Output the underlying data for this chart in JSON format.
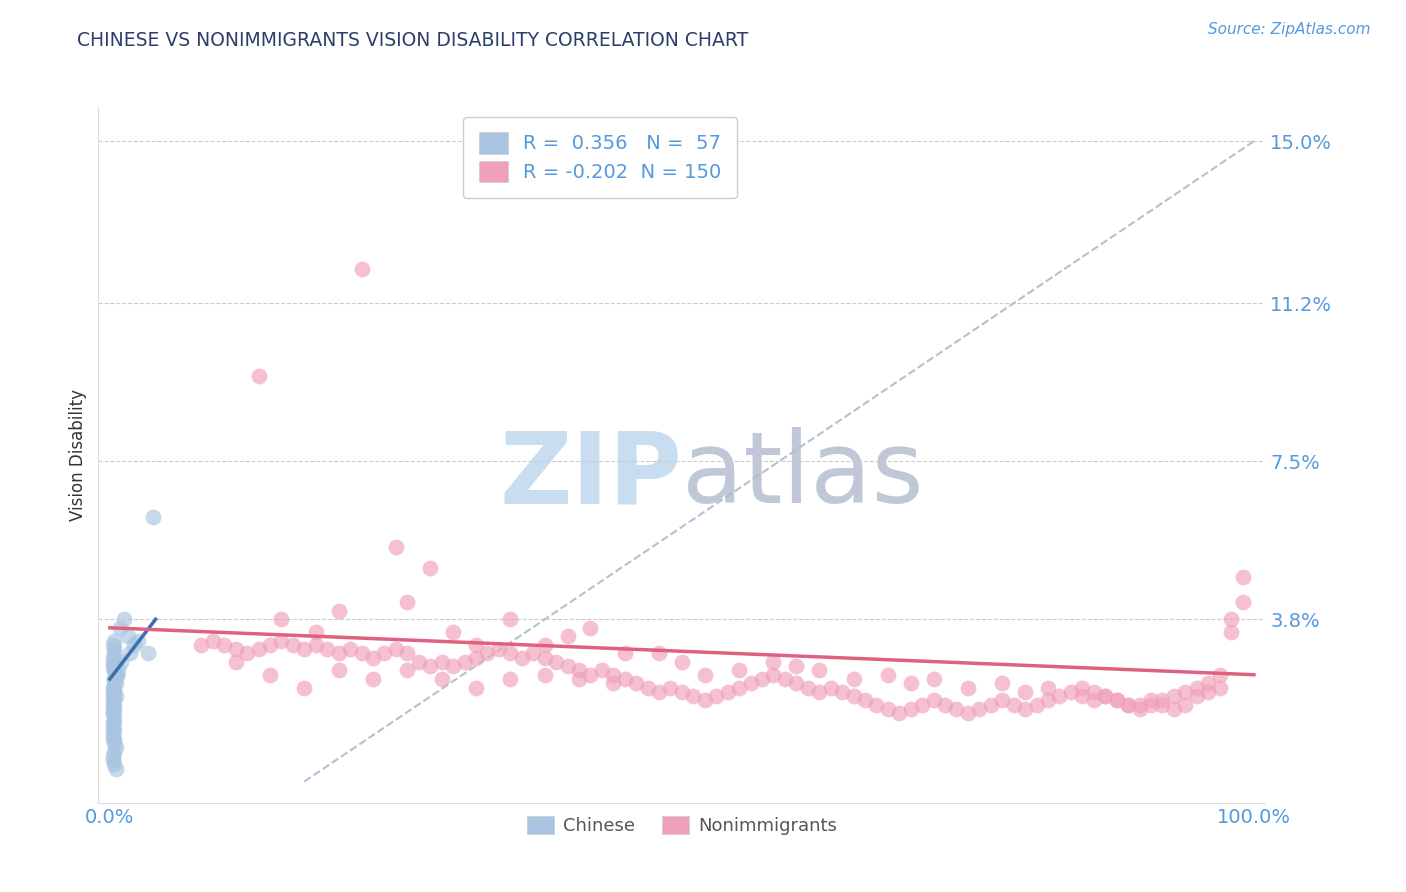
{
  "title": "CHINESE VS NONIMMIGRANTS VISION DISABILITY CORRELATION CHART",
  "source": "Source: ZipAtlas.com",
  "ylabel": "Vision Disability",
  "watermark": "ZIPatlas",
  "xlim": [
    -0.01,
    1.01
  ],
  "ylim": [
    -0.005,
    0.158
  ],
  "yticks": [
    0.038,
    0.075,
    0.112,
    0.15
  ],
  "ytick_labels": [
    "3.8%",
    "7.5%",
    "11.2%",
    "15.0%"
  ],
  "xtick_labels": [
    "0.0%",
    "100.0%"
  ],
  "xticks": [
    0.0,
    1.0
  ],
  "r_chinese": 0.356,
  "n_chinese": 57,
  "r_nonimm": -0.202,
  "n_nonimm": 150,
  "legend_labels": [
    "Chinese",
    "Nonimmigrants"
  ],
  "blue_color": "#a8c4e0",
  "pink_color": "#f0a0b8",
  "blue_line_color": "#3a6fb0",
  "pink_line_color": "#e06080",
  "title_color": "#2c3e6b",
  "axis_label_color": "#333333",
  "tick_label_color": "#5599dd",
  "source_color": "#5599dd",
  "watermark_blue": "#c8ddf0",
  "watermark_gray": "#c0c8d8",
  "grid_color": "#cccccc",
  "background_color": "#ffffff",
  "chinese_x": [
    0.005,
    0.004,
    0.004,
    0.003,
    0.003,
    0.003,
    0.004,
    0.005,
    0.006,
    0.004,
    0.003,
    0.003,
    0.004,
    0.004,
    0.003,
    0.003,
    0.004,
    0.004,
    0.004,
    0.005,
    0.004,
    0.003,
    0.003,
    0.004,
    0.005,
    0.004,
    0.003,
    0.003,
    0.004,
    0.003,
    0.004,
    0.003,
    0.003,
    0.004,
    0.003,
    0.004,
    0.003,
    0.003,
    0.004,
    0.004,
    0.003,
    0.004,
    0.006,
    0.005,
    0.004,
    0.004,
    0.003,
    0.016,
    0.009,
    0.012,
    0.018,
    0.021,
    0.01,
    0.007,
    0.033,
    0.025,
    0.038
  ],
  "chinese_y": [
    0.02,
    0.022,
    0.024,
    0.018,
    0.016,
    0.014,
    0.026,
    0.028,
    0.025,
    0.023,
    0.021,
    0.019,
    0.017,
    0.015,
    0.013,
    0.011,
    0.012,
    0.01,
    0.009,
    0.008,
    0.007,
    0.006,
    0.005,
    0.004,
    0.003,
    0.03,
    0.032,
    0.028,
    0.026,
    0.027,
    0.024,
    0.022,
    0.02,
    0.018,
    0.016,
    0.014,
    0.012,
    0.01,
    0.033,
    0.031,
    0.029,
    0.027,
    0.025,
    0.023,
    0.021,
    0.019,
    0.017,
    0.034,
    0.036,
    0.038,
    0.03,
    0.032,
    0.028,
    0.026,
    0.03,
    0.033,
    0.062
  ],
  "nonimm_x": [
    0.25,
    0.22,
    0.13,
    0.3,
    0.18,
    0.35,
    0.42,
    0.28,
    0.38,
    0.2,
    0.45,
    0.15,
    0.32,
    0.5,
    0.4,
    0.26,
    0.55,
    0.48,
    0.6,
    0.58,
    0.52,
    0.65,
    0.62,
    0.7,
    0.68,
    0.75,
    0.72,
    0.8,
    0.78,
    0.85,
    0.82,
    0.88,
    0.9,
    0.92,
    0.95,
    0.97,
    0.98,
    0.99,
    0.86,
    0.87,
    0.89,
    0.91,
    0.93,
    0.94,
    0.96,
    0.98,
    0.99,
    0.97,
    0.96,
    0.95,
    0.94,
    0.93,
    0.92,
    0.91,
    0.9,
    0.89,
    0.88,
    0.87,
    0.86,
    0.85,
    0.84,
    0.83,
    0.82,
    0.81,
    0.8,
    0.79,
    0.78,
    0.77,
    0.76,
    0.75,
    0.74,
    0.73,
    0.72,
    0.71,
    0.7,
    0.69,
    0.68,
    0.67,
    0.66,
    0.65,
    0.64,
    0.63,
    0.62,
    0.61,
    0.6,
    0.59,
    0.58,
    0.57,
    0.56,
    0.55,
    0.54,
    0.53,
    0.52,
    0.51,
    0.5,
    0.49,
    0.48,
    0.47,
    0.46,
    0.45,
    0.44,
    0.43,
    0.42,
    0.41,
    0.4,
    0.39,
    0.38,
    0.37,
    0.36,
    0.35,
    0.34,
    0.33,
    0.32,
    0.31,
    0.3,
    0.29,
    0.28,
    0.27,
    0.26,
    0.25,
    0.24,
    0.23,
    0.22,
    0.21,
    0.2,
    0.19,
    0.18,
    0.17,
    0.16,
    0.15,
    0.14,
    0.13,
    0.12,
    0.11,
    0.1,
    0.09,
    0.08,
    0.11,
    0.14,
    0.17,
    0.2,
    0.23,
    0.26,
    0.29,
    0.32,
    0.35,
    0.38,
    0.41,
    0.44
  ],
  "nonimm_y": [
    0.055,
    0.12,
    0.095,
    0.035,
    0.035,
    0.038,
    0.036,
    0.05,
    0.032,
    0.04,
    0.03,
    0.038,
    0.032,
    0.028,
    0.034,
    0.042,
    0.026,
    0.03,
    0.027,
    0.028,
    0.025,
    0.024,
    0.026,
    0.023,
    0.025,
    0.022,
    0.024,
    0.021,
    0.023,
    0.02,
    0.022,
    0.019,
    0.018,
    0.018,
    0.02,
    0.022,
    0.038,
    0.048,
    0.019,
    0.02,
    0.018,
    0.019,
    0.017,
    0.018,
    0.021,
    0.035,
    0.042,
    0.025,
    0.023,
    0.022,
    0.021,
    0.02,
    0.019,
    0.018,
    0.017,
    0.018,
    0.019,
    0.02,
    0.021,
    0.022,
    0.021,
    0.02,
    0.019,
    0.018,
    0.017,
    0.018,
    0.019,
    0.018,
    0.017,
    0.016,
    0.017,
    0.018,
    0.019,
    0.018,
    0.017,
    0.016,
    0.017,
    0.018,
    0.019,
    0.02,
    0.021,
    0.022,
    0.021,
    0.022,
    0.023,
    0.024,
    0.025,
    0.024,
    0.023,
    0.022,
    0.021,
    0.02,
    0.019,
    0.02,
    0.021,
    0.022,
    0.021,
    0.022,
    0.023,
    0.024,
    0.025,
    0.026,
    0.025,
    0.026,
    0.027,
    0.028,
    0.029,
    0.03,
    0.029,
    0.03,
    0.031,
    0.03,
    0.029,
    0.028,
    0.027,
    0.028,
    0.027,
    0.028,
    0.03,
    0.031,
    0.03,
    0.029,
    0.03,
    0.031,
    0.03,
    0.031,
    0.032,
    0.031,
    0.032,
    0.033,
    0.032,
    0.031,
    0.03,
    0.031,
    0.032,
    0.033,
    0.032,
    0.028,
    0.025,
    0.022,
    0.026,
    0.024,
    0.026,
    0.024,
    0.022,
    0.024,
    0.025,
    0.024,
    0.023
  ],
  "dash_line_x": [
    0.17,
    1.0
  ],
  "dash_line_y": [
    0.0,
    0.15
  ],
  "blue_trend_x": [
    0.0,
    0.04
  ],
  "blue_trend_y": [
    0.024,
    0.038
  ],
  "pink_trend_x": [
    0.0,
    1.0
  ],
  "pink_trend_y": [
    0.036,
    0.025
  ]
}
